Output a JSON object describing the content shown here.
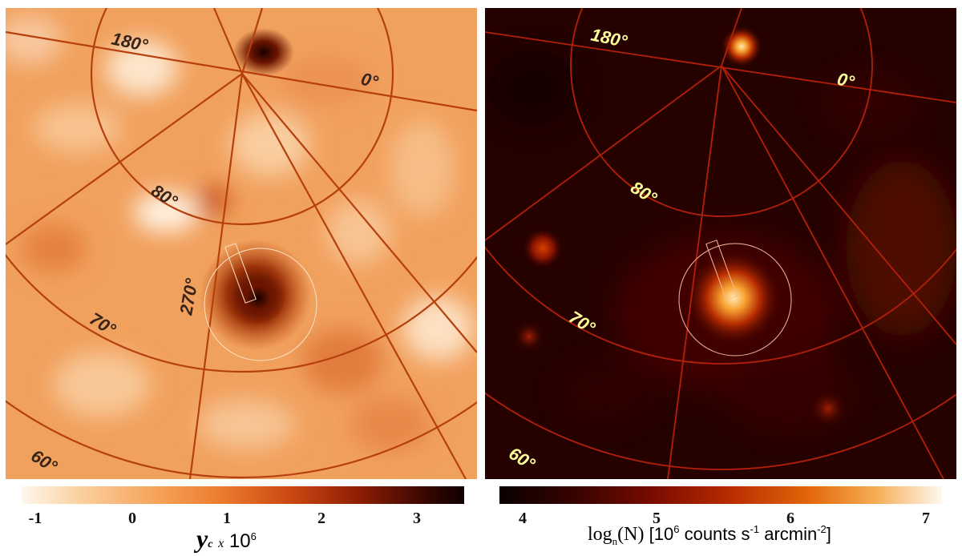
{
  "left_panel": {
    "grid_labels": {
      "l180": "180°",
      "l0": "0°",
      "l80": "80°",
      "l70": "70°",
      "l270": "270°",
      "l60": "60°"
    },
    "label_color": "#3a2418",
    "grid_color": "#b5400d"
  },
  "right_panel": {
    "grid_labels": {
      "l180": "180°",
      "l0": "0°",
      "l80": "80°",
      "l70": "70°",
      "l60": "60°"
    },
    "label_color": "#ffff99",
    "grid_color": "#b3200a"
  },
  "colorbar_left": {
    "ticks": [
      "-1",
      "0",
      "1",
      "2",
      "3"
    ],
    "label_symbol": "y",
    "label_subscript": "c",
    "label_times": "x",
    "label_scale": "10",
    "label_exponent": "6"
  },
  "colorbar_right": {
    "ticks": [
      "4",
      "5",
      "6",
      "7"
    ],
    "label_log": "log",
    "label_log_sub": "n",
    "label_quantity": "(N)",
    "label_unit_open": "[10",
    "label_unit_exp1": "6",
    "label_unit_counts": "counts s",
    "label_unit_exp2": "-1",
    "label_unit_arcmin": "arcmin",
    "label_unit_exp3": "-2",
    "label_unit_close": "]"
  }
}
